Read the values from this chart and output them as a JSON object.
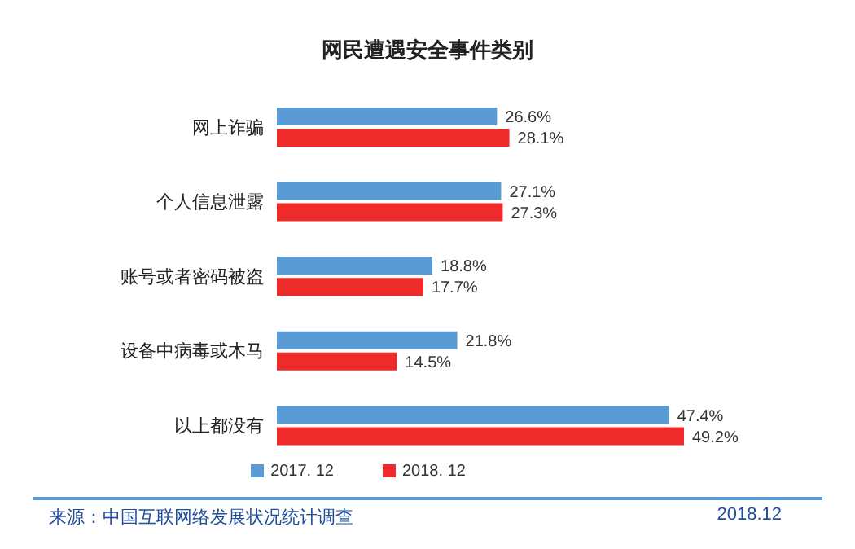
{
  "chart_data": {
    "type": "bar",
    "orientation": "horizontal",
    "title": "网民遭遇安全事件类别",
    "categories": [
      "网上诈骗",
      "个人信息泄露",
      "账号或者密码被盗",
      "设备中病毒或木马",
      "以上都没有"
    ],
    "series": [
      {
        "name": "2017. 12",
        "color": "#5b9bd5",
        "values": [
          26.6,
          27.1,
          18.8,
          21.8,
          47.4
        ],
        "value_labels": [
          "26.6%",
          "27.1%",
          "18.8%",
          "21.8%",
          "47.4%"
        ]
      },
      {
        "name": "2018. 12",
        "color": "#ee2a2a",
        "values": [
          28.1,
          27.3,
          17.7,
          14.5,
          49.2
        ],
        "value_labels": [
          "28.1%",
          "27.3%",
          "17.7%",
          "14.5%",
          "49.2%"
        ]
      }
    ],
    "legend": "bottom",
    "annotations": [
      "来源：中国互联网络发展状况统计调查",
      "2018.12"
    ]
  }
}
